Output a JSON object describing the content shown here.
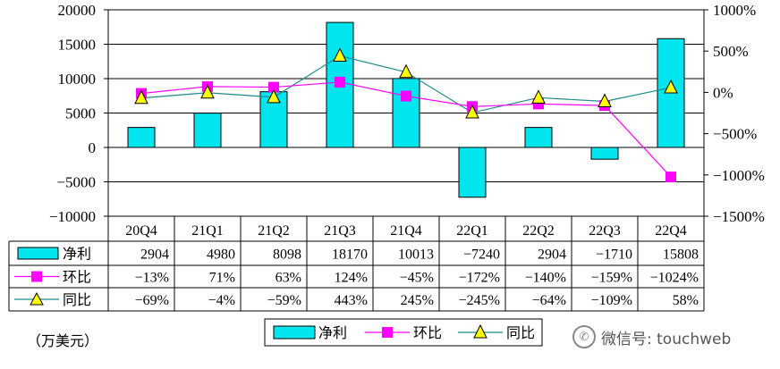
{
  "chart_data": {
    "type": "bar",
    "categories": [
      "20Q4",
      "21Q1",
      "21Q2",
      "21Q3",
      "21Q4",
      "22Q1",
      "22Q2",
      "22Q3",
      "22Q4"
    ],
    "series": [
      {
        "name": "净利",
        "type": "bar",
        "axis": "left",
        "color": "#00E5EE",
        "values": [
          2904,
          4980,
          8098,
          18170,
          10013,
          -7240,
          2904,
          -1710,
          15808
        ],
        "labels": [
          "2904",
          "4980",
          "8098",
          "18170",
          "10013",
          "−7240",
          "2904",
          "−1710",
          "15808"
        ]
      },
      {
        "name": "环比",
        "type": "line",
        "axis": "right",
        "color": "#FF00FF",
        "marker": "square",
        "values": [
          -13,
          71,
          63,
          124,
          -45,
          -172,
          -140,
          -159,
          -1024
        ],
        "labels": [
          "−13%",
          "71%",
          "63%",
          "124%",
          "−45%",
          "−172%",
          "−140%",
          "−159%",
          "−1024%"
        ]
      },
      {
        "name": "同比",
        "type": "line",
        "axis": "right",
        "color": "#FFFF00",
        "line_color": "#1E8A8A",
        "marker": "triangle",
        "values": [
          -69,
          -4,
          -59,
          443,
          245,
          -245,
          -64,
          -109,
          58
        ],
        "labels": [
          "−69%",
          "−4%",
          "−59%",
          "443%",
          "245%",
          "−245%",
          "−64%",
          "−109%",
          "58%"
        ]
      }
    ],
    "left_axis": {
      "min": -10000,
      "max": 20000,
      "step": 5000,
      "tick_labels": [
        "20000",
        "15000",
        "10000",
        "5000",
        "0",
        "−5000",
        "−10000"
      ]
    },
    "right_axis": {
      "min": -1500,
      "max": 1000,
      "step": 500,
      "tick_labels": [
        "1000%",
        "500%",
        "0%",
        "−500%",
        "−1000%",
        "−1500%"
      ]
    },
    "legend": [
      "净利",
      "环比",
      "同比"
    ],
    "legend_position": "bottom",
    "data_table": true,
    "unit_note": "（万美元）"
  },
  "watermark": {
    "icon": "wechat-icon",
    "text": "微信号: touchweb"
  }
}
